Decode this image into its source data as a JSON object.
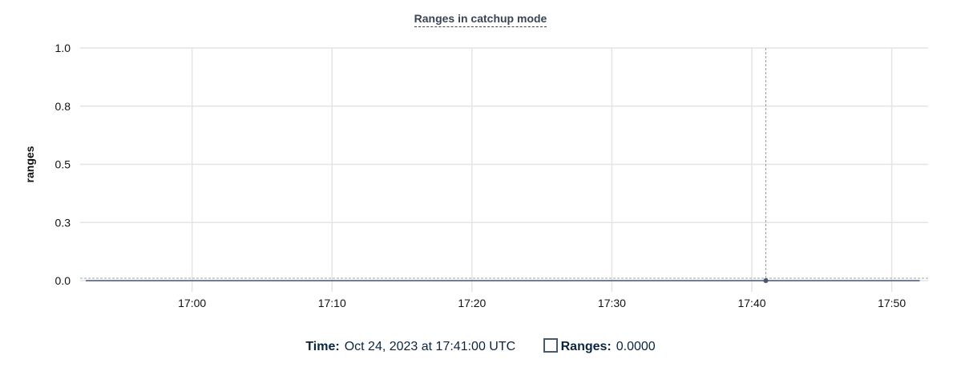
{
  "chart_data": {
    "type": "line",
    "title": "Ranges in catchup mode",
    "ylabel": "ranges",
    "xlabel": "",
    "ylim": [
      0,
      1
    ],
    "xlim": [
      "16:52",
      "17:52.6"
    ],
    "y_ticks": [
      0,
      0.25,
      0.5,
      0.75,
      1
    ],
    "y_tick_labels": [
      "0.0",
      "0.3",
      "0.5",
      "0.8",
      "1.0"
    ],
    "x_ticks": [
      "17:00",
      "17:10",
      "17:20",
      "17:30",
      "17:40",
      "17:50"
    ],
    "grid": true,
    "series": [
      {
        "name": "Ranges",
        "color": "#475872",
        "x_start": "16:52.4",
        "x_end": "17:52",
        "value": 0
      }
    ],
    "hover": {
      "x": "17:41",
      "y": 0
    }
  },
  "legend": {
    "time_label": "Time:",
    "time_value": "Oct 24, 2023 at 17:41:00 UTC",
    "series_label": "Ranges:",
    "series_value": "0.0000"
  }
}
